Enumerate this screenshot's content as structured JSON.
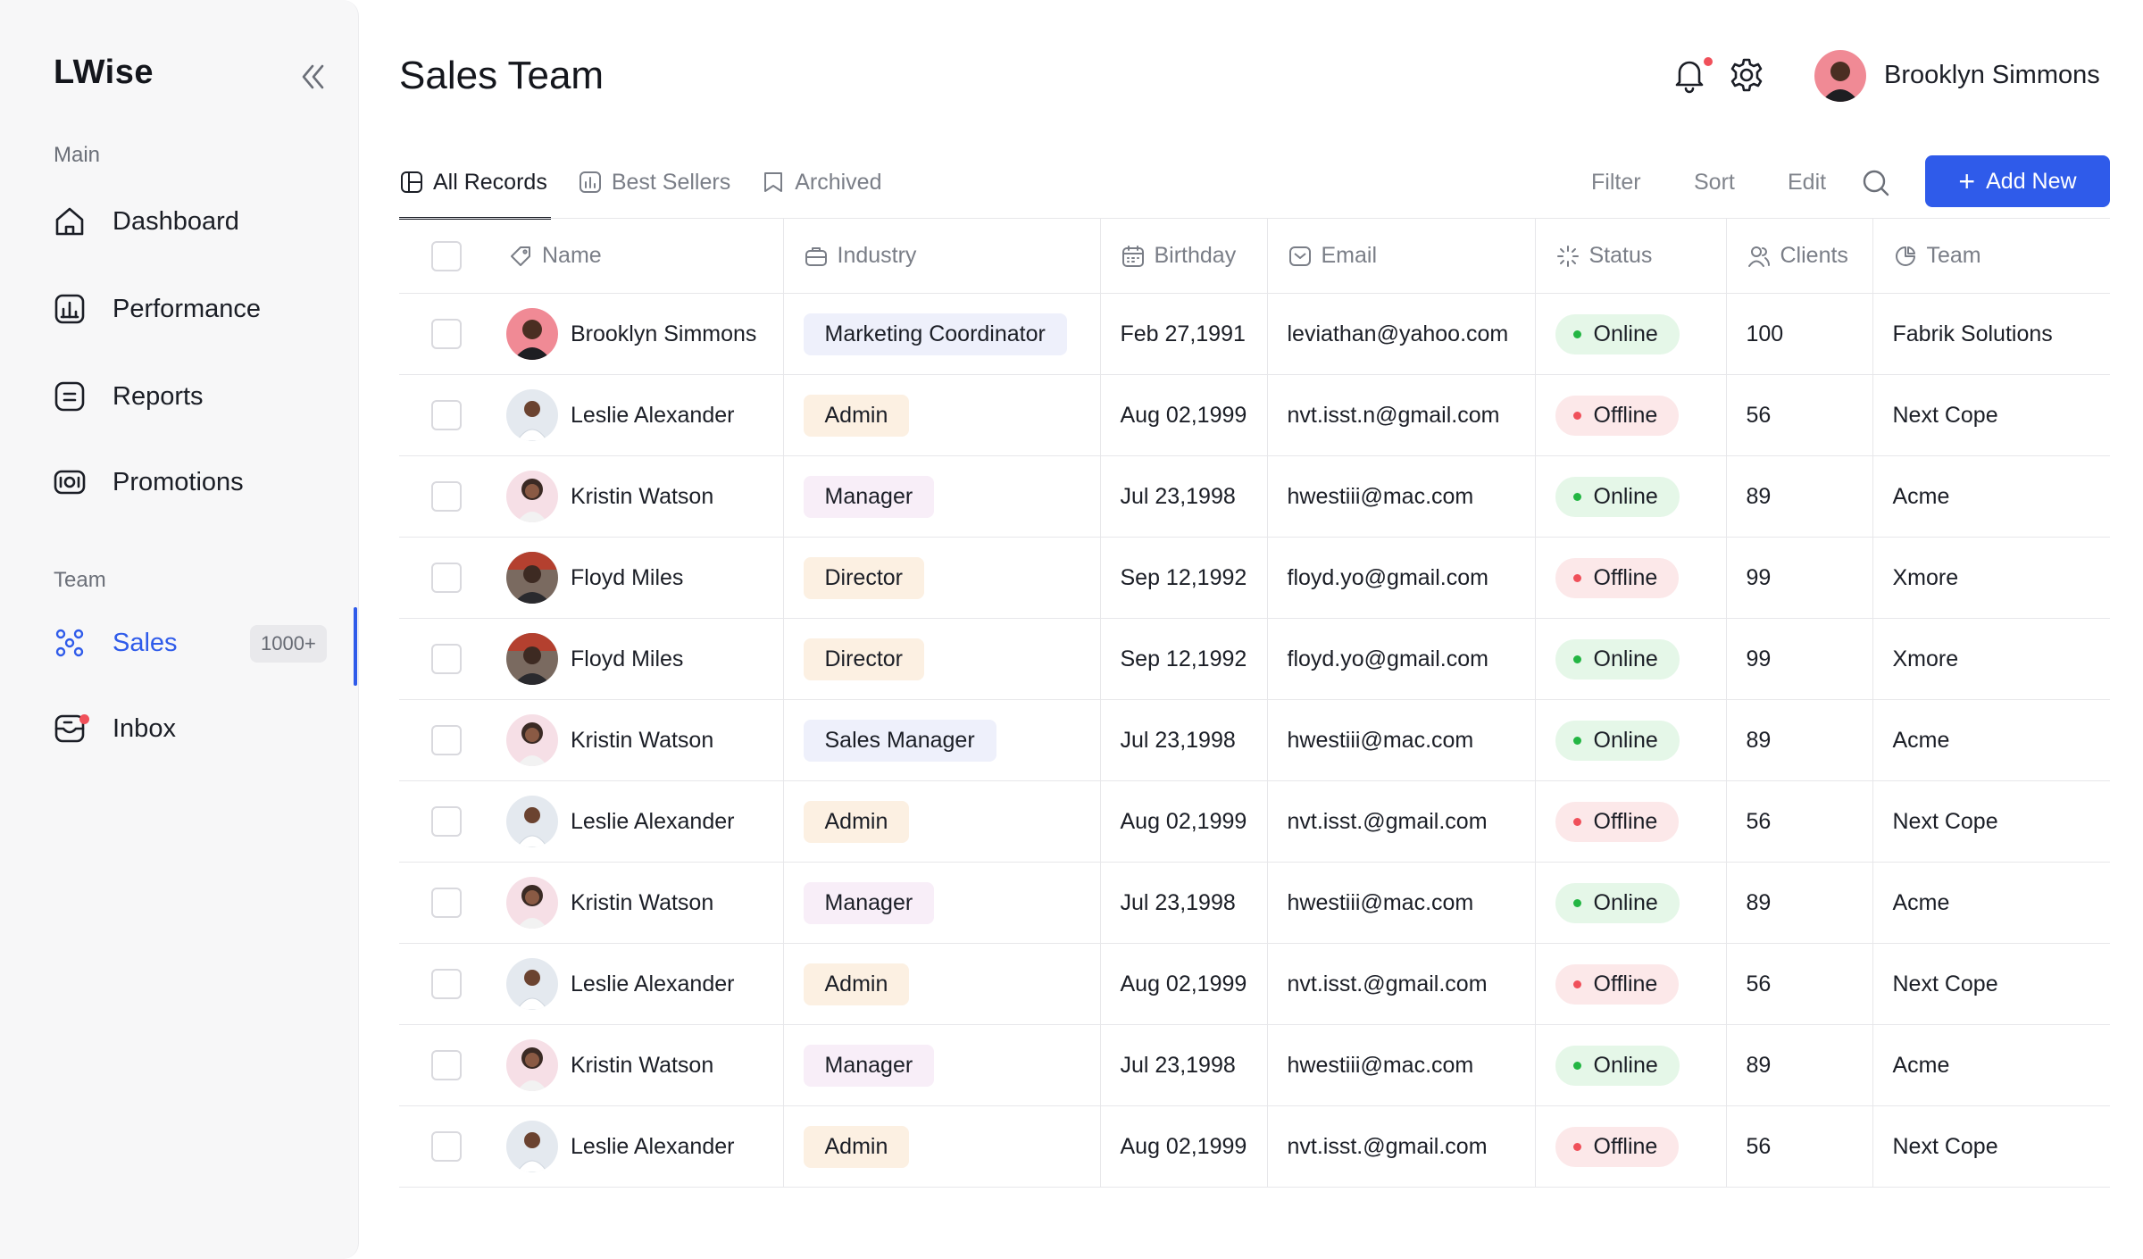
{
  "app": {
    "logo": "LWise"
  },
  "sidebar": {
    "main_label": "Main",
    "main_items": [
      {
        "label": "Dashboard",
        "icon": "home-icon"
      },
      {
        "label": "Performance",
        "icon": "chart-icon"
      },
      {
        "label": "Reports",
        "icon": "report-icon"
      },
      {
        "label": "Promotions",
        "icon": "promotion-icon"
      }
    ],
    "team_label": "Team",
    "team_items": [
      {
        "label": "Sales",
        "icon": "team-icon",
        "badge": "1000+",
        "active": true
      },
      {
        "label": "Inbox",
        "icon": "inbox-icon"
      }
    ]
  },
  "header": {
    "title": "Sales Team",
    "user_name": "Brooklyn Simmons"
  },
  "tabs": [
    {
      "label": "All Records",
      "icon": "table-icon",
      "active": true
    },
    {
      "label": "Best Sellers",
      "icon": "chart-icon"
    },
    {
      "label": "Archived",
      "icon": "bookmark-icon"
    }
  ],
  "toolbar": {
    "filter": "Filter",
    "sort": "Sort",
    "edit": "Edit",
    "add_new": "Add New"
  },
  "table": {
    "columns": [
      {
        "label": "Name",
        "icon": "tag-icon"
      },
      {
        "label": "Industry",
        "icon": "briefcase-icon"
      },
      {
        "label": "Birthday",
        "icon": "calendar-icon"
      },
      {
        "label": "Email",
        "icon": "mail-icon"
      },
      {
        "label": "Status",
        "icon": "loader-icon"
      },
      {
        "label": "Clients",
        "icon": "users-icon"
      },
      {
        "label": "Team",
        "icon": "pie-icon"
      }
    ],
    "rows": [
      {
        "name": "Brooklyn Simmons",
        "industry": "Marketing Coordinator",
        "birthday": "Feb 27,1991",
        "email": "leviathan@yahoo.com",
        "status": "Online",
        "clients": "100",
        "team": "Fabrik Solutions"
      },
      {
        "name": "Leslie Alexander",
        "industry": "Admin",
        "birthday": "Aug 02,1999",
        "email": "nvt.isst.n@gmail.com",
        "status": "Offline",
        "clients": "56",
        "team": "Next Cope"
      },
      {
        "name": "Kristin Watson",
        "industry": "Manager",
        "birthday": "Jul 23,1998",
        "email": "hwestiii@mac.com",
        "status": "Online",
        "clients": "89",
        "team": "Acme"
      },
      {
        "name": "Floyd Miles",
        "industry": "Director",
        "birthday": "Sep 12,1992",
        "email": "floyd.yo@gmail.com",
        "status": "Offline",
        "clients": "99",
        "team": "Xmore"
      },
      {
        "name": "Floyd Miles",
        "industry": "Director",
        "birthday": "Sep 12,1992",
        "email": "floyd.yo@gmail.com",
        "status": "Online",
        "clients": "99",
        "team": "Xmore"
      },
      {
        "name": "Kristin Watson",
        "industry": "Sales Manager",
        "birthday": "Jul 23,1998",
        "email": "hwestiii@mac.com",
        "status": "Online",
        "clients": "89",
        "team": "Acme"
      },
      {
        "name": "Leslie Alexander",
        "industry": "Admin",
        "birthday": "Aug 02,1999",
        "email": "nvt.isst.@gmail.com",
        "status": "Offline",
        "clients": "56",
        "team": "Next Cope"
      },
      {
        "name": "Kristin Watson",
        "industry": "Manager",
        "birthday": "Jul 23,1998",
        "email": "hwestiii@mac.com",
        "status": "Online",
        "clients": "89",
        "team": "Acme"
      },
      {
        "name": "Leslie Alexander",
        "industry": "Admin",
        "birthday": "Aug 02,1999",
        "email": "nvt.isst.@gmail.com",
        "status": "Offline",
        "clients": "56",
        "team": "Next Cope"
      },
      {
        "name": "Kristin Watson",
        "industry": "Manager",
        "birthday": "Jul 23,1998",
        "email": "hwestiii@mac.com",
        "status": "Online",
        "clients": "89",
        "team": "Acme"
      },
      {
        "name": "Leslie Alexander",
        "industry": "Admin",
        "birthday": "Aug 02,1999",
        "email": "nvt.isst.@gmail.com",
        "status": "Offline",
        "clients": "56",
        "team": "Next Cope"
      }
    ]
  },
  "colors": {
    "accent": "#2f5bea",
    "online": "#23b643",
    "offline": "#f0505a"
  }
}
